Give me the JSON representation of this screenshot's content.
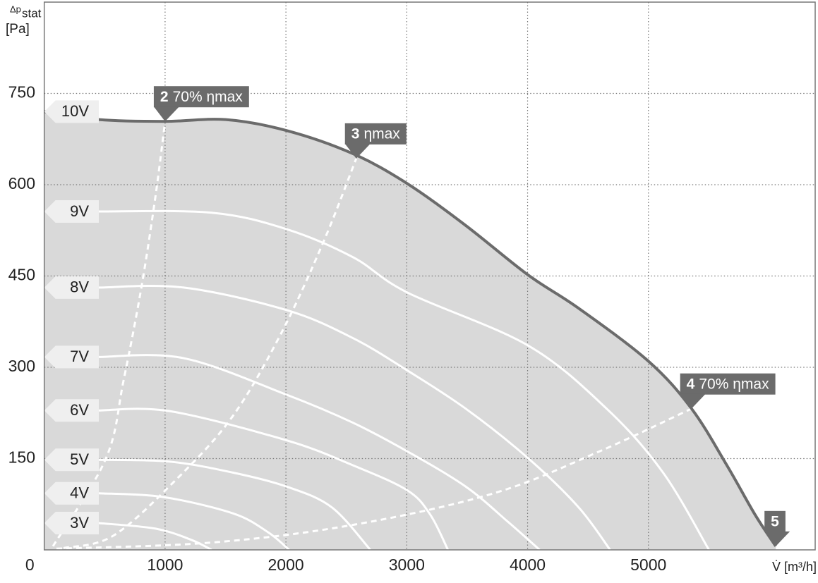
{
  "chart_data": {
    "type": "line",
    "ylabel": {
      "symbol": "Δp",
      "subscript": "stat",
      "unit": "[Pa]"
    },
    "xlabel": "V̇ [m³/h]",
    "xlim": [
      0,
      6380
    ],
    "ylim": [
      0,
      900
    ],
    "xticks": [
      0,
      1000,
      2000,
      3000,
      4000,
      5000
    ],
    "yticks": [
      150,
      300,
      450,
      600,
      750
    ],
    "grid": true,
    "area_color": "#d9d9d9",
    "series": [
      {
        "name": "10V",
        "color": "#6b6b6b",
        "marker": "5",
        "x": [
          0,
          452,
          1000,
          1502,
          2005,
          2554,
          3003,
          3488,
          4002,
          4422,
          5000,
          5357,
          5649,
          5882,
          6054
        ],
        "values": [
          720,
          707,
          704,
          707,
          689,
          651,
          602,
          533,
          452,
          397,
          310,
          232,
          139,
          58,
          6
        ]
      },
      {
        "name": "9V",
        "color": "#ffffff",
        "x": [
          451,
          1386,
          2005,
          2554,
          3003,
          4002,
          4654,
          5121,
          5501
        ],
        "values": [
          556,
          554,
          527,
          481,
          423,
          336,
          232,
          127,
          0
        ]
      },
      {
        "name": "8V",
        "color": "#ffffff",
        "x": [
          451,
          1153,
          2005,
          2554,
          3003,
          3488,
          4002,
          4422,
          4683
        ],
        "values": [
          431,
          431,
          394,
          348,
          295,
          232,
          151,
          70,
          0
        ]
      },
      {
        "name": "7V",
        "color": "#ffffff",
        "x": [
          451,
          1153,
          2005,
          2554,
          3003,
          3488,
          3838,
          4100
        ],
        "values": [
          317,
          315,
          255,
          209,
          162,
          104,
          46,
          0
        ]
      },
      {
        "name": "6V",
        "color": "#ffffff",
        "x": [
          451,
          1036,
          2005,
          2554,
          3003,
          3194,
          3341
        ],
        "values": [
          229,
          228,
          180,
          139,
          98,
          58,
          0
        ]
      },
      {
        "name": "5V",
        "color": "#ffffff",
        "x": [
          451,
          1036,
          1561,
          2005,
          2379,
          2699
        ],
        "values": [
          148,
          145,
          127,
          104,
          70,
          0
        ]
      },
      {
        "name": "4V",
        "color": "#ffffff",
        "x": [
          451,
          978,
          1561,
          1852,
          2027
        ],
        "values": [
          93,
          87,
          60,
          29,
          0
        ]
      },
      {
        "name": "3V",
        "color": "#ffffff",
        "x": [
          451,
          918,
          1210,
          1386
        ],
        "values": [
          44,
          35,
          17,
          0
        ]
      }
    ],
    "system_lines": [
      {
        "number": "2",
        "label": "70% ηmax",
        "x": [
          72,
          510,
          656,
          802,
          919,
          1000
        ],
        "values": [
          6,
          150,
          278,
          429,
          579,
          704
        ]
      },
      {
        "number": "3",
        "label": "ηmax",
        "x": [
          160,
          569,
          1094,
          1561,
          1969,
          2319,
          2582
        ],
        "values": [
          3,
          23,
          116,
          220,
          359,
          510,
          643
        ]
      },
      {
        "number": "4",
        "label": "70% ηmax",
        "x": [
          101,
          1385,
          2553,
          3721,
          4597,
          5356
        ],
        "values": [
          2,
          12,
          41,
          93,
          162,
          232
        ]
      }
    ]
  }
}
